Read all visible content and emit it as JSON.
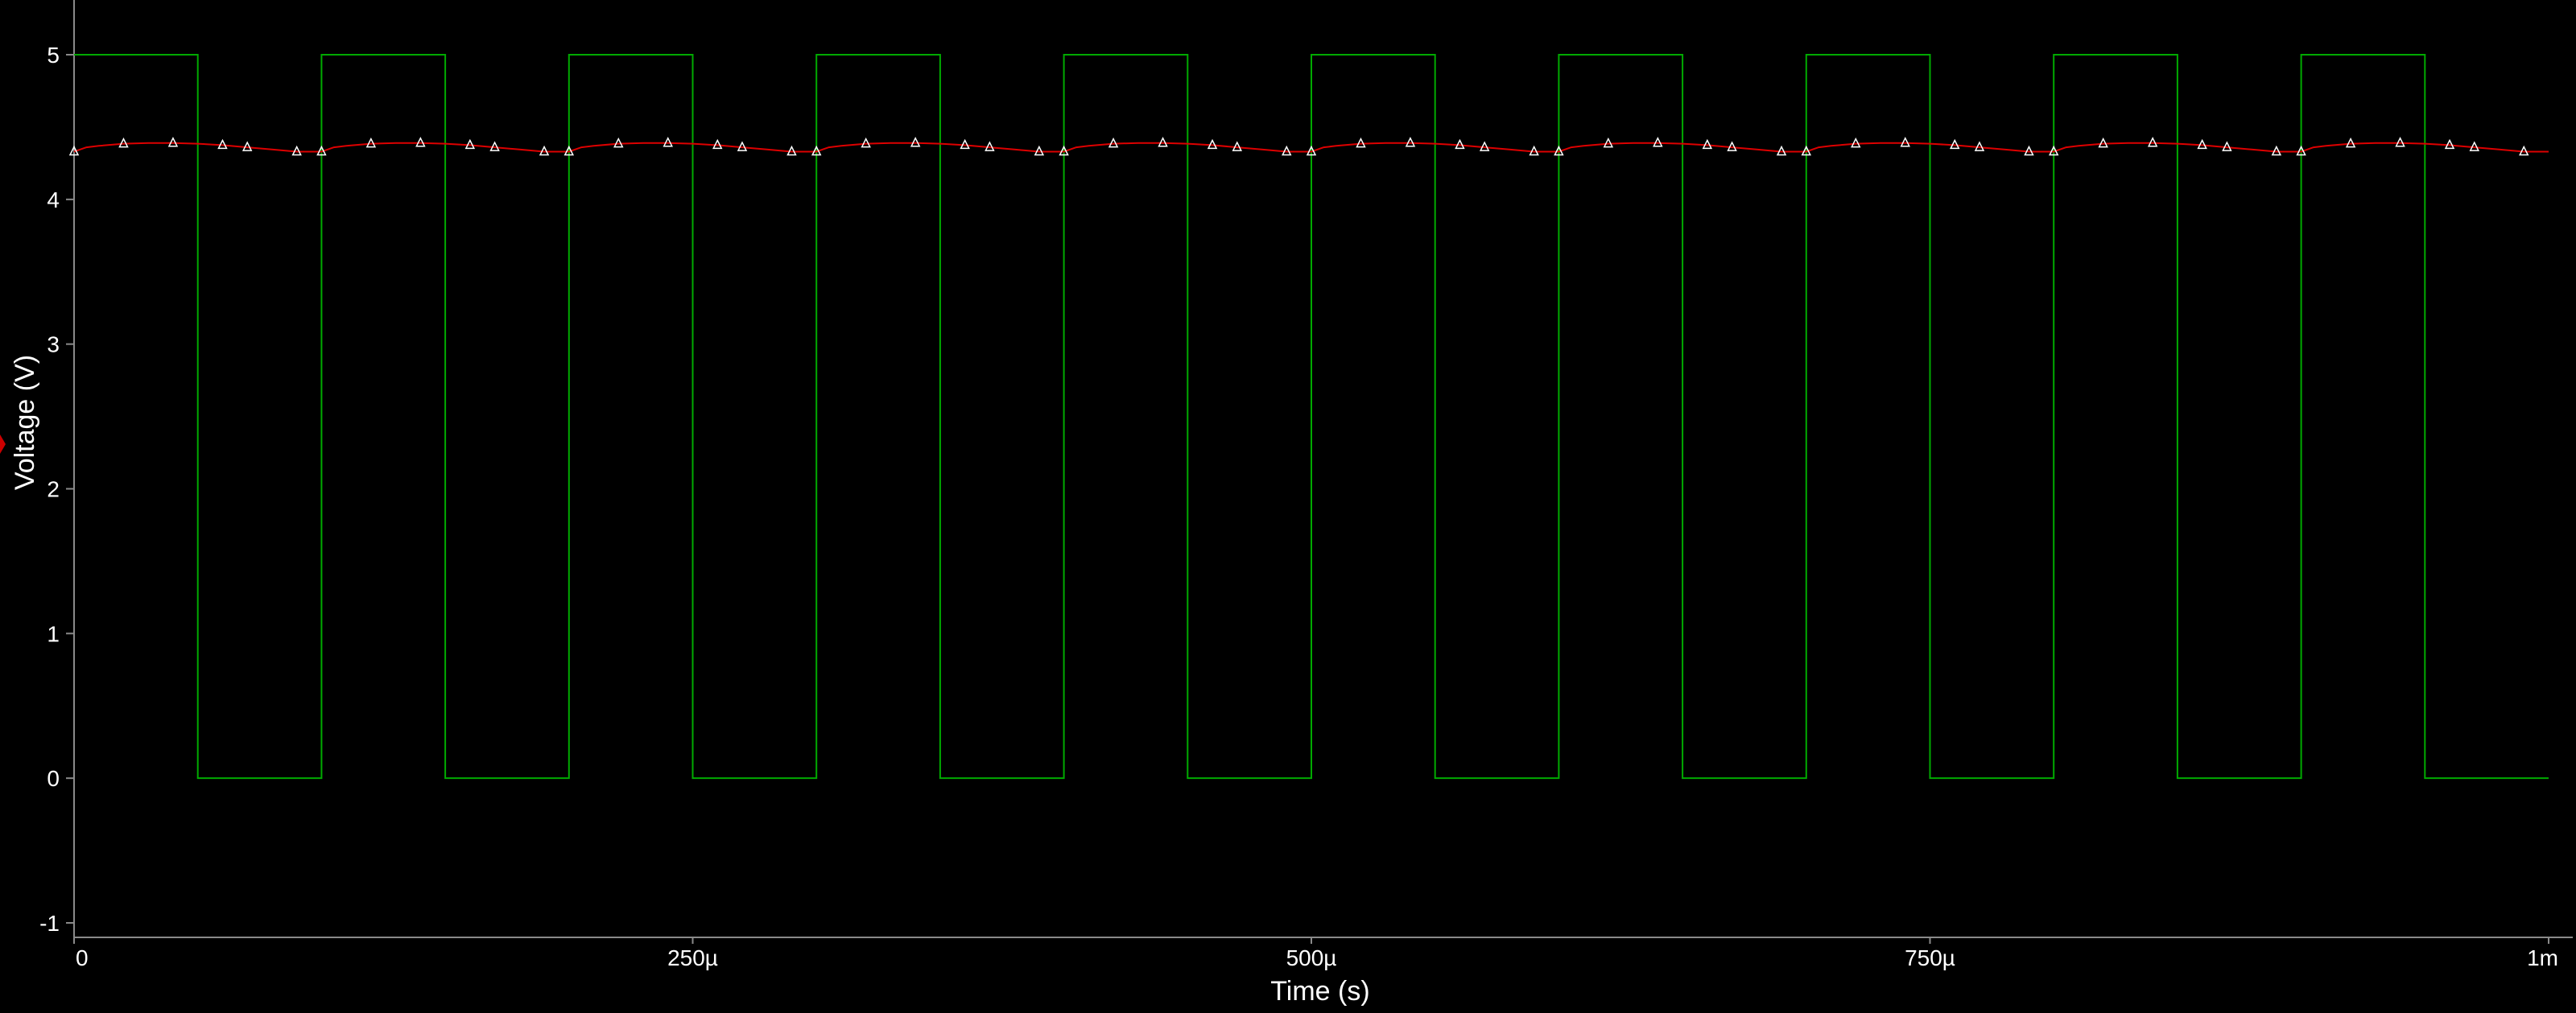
{
  "chart_data": {
    "type": "line",
    "xlabel": "Time (s)",
    "ylabel": "Voltage (V)",
    "xlim": [
      0,
      0.001
    ],
    "ylim": [
      -1.2,
      5.35
    ],
    "x_ticks": [
      {
        "value": 0,
        "label": "0"
      },
      {
        "value": 0.00025,
        "label": "250µ"
      },
      {
        "value": 0.0005,
        "label": "500µ"
      },
      {
        "value": 0.00075,
        "label": "750µ"
      },
      {
        "value": 0.001,
        "label": "1m"
      }
    ],
    "y_ticks": [
      {
        "value": 5,
        "label": "5"
      },
      {
        "value": 4,
        "label": "4"
      },
      {
        "value": 3,
        "label": "3"
      },
      {
        "value": 2,
        "label": "2"
      },
      {
        "value": 1,
        "label": "1"
      },
      {
        "value": 0,
        "label": "0"
      },
      {
        "value": -1,
        "label": "-1"
      }
    ],
    "grid": false,
    "series": [
      {
        "color": "#00aa00",
        "style": "square-wave",
        "period": 0.0001,
        "high": 5,
        "low": 0,
        "high_duration": 5e-05,
        "first_fall": 5e-05
      },
      {
        "color": "#dd0000",
        "marker": "triangle",
        "marker_color": "#ffffff",
        "period": 0.0001,
        "x": [
          0,
          5e-06,
          1e-05,
          2e-05,
          3e-05,
          4e-05,
          5e-05,
          6e-05,
          7e-05,
          8e-05,
          9e-05,
          0.0001
        ],
        "y": [
          4.33,
          4.36,
          4.37,
          4.385,
          4.39,
          4.39,
          4.385,
          4.375,
          4.36,
          4.345,
          4.33,
          4.33
        ]
      }
    ]
  }
}
